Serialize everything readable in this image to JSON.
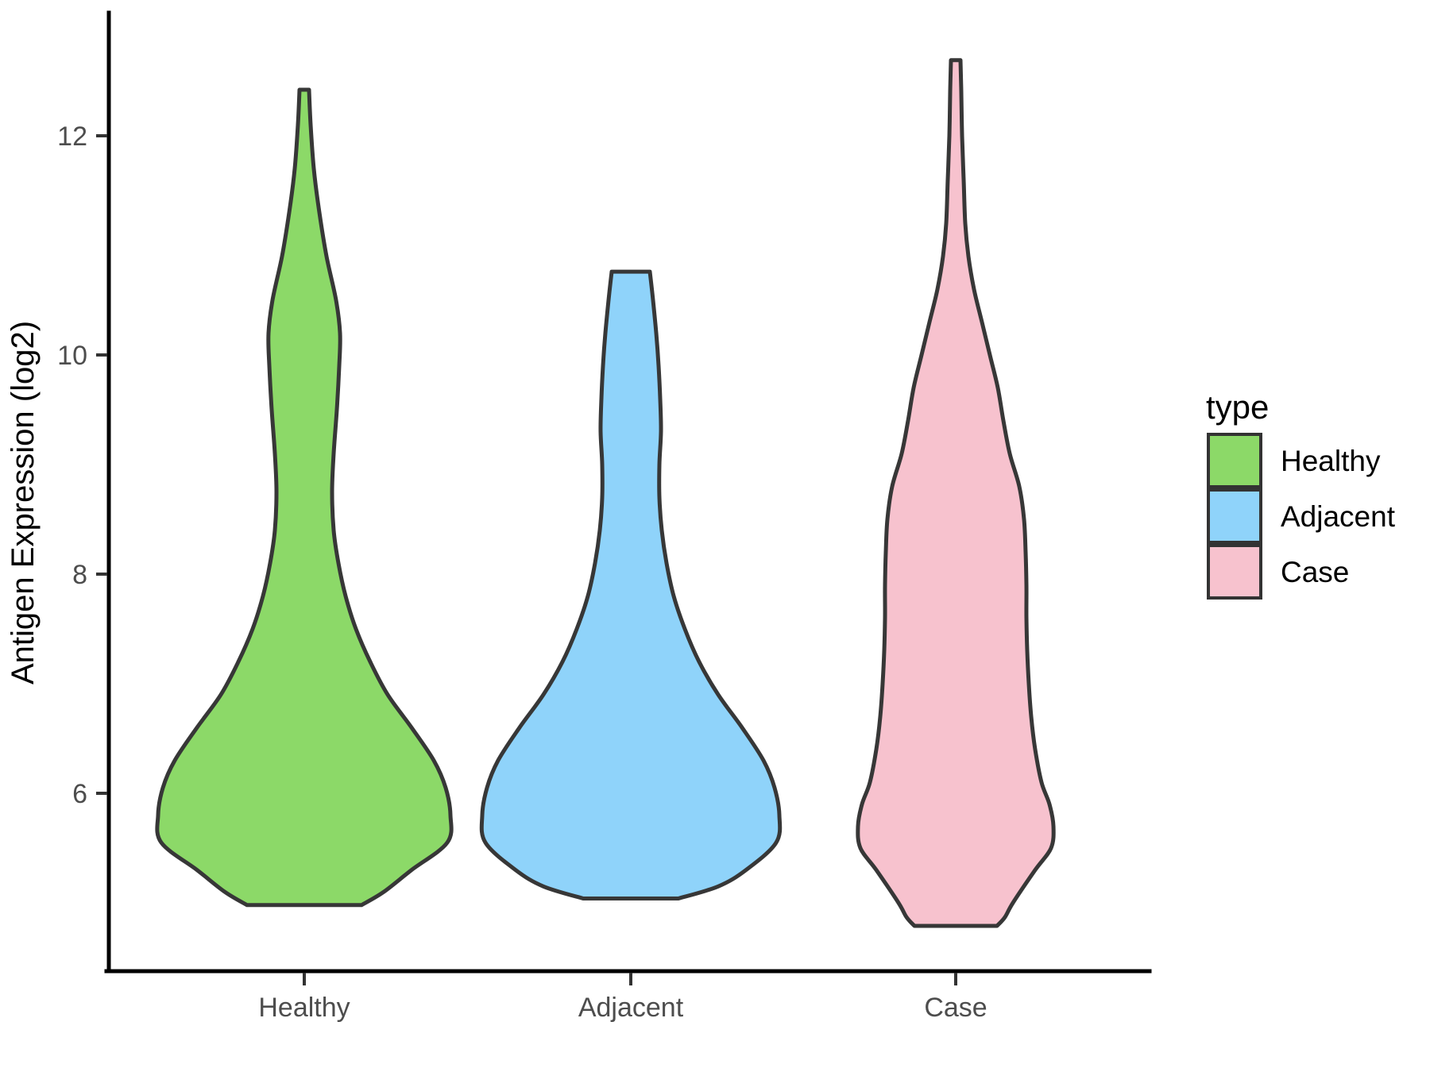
{
  "axes": {
    "y": {
      "title": "Antigen Expression (log2)",
      "ticks": [
        {
          "value": 12,
          "label": "12"
        },
        {
          "value": 10,
          "label": "10"
        },
        {
          "value": 8,
          "label": "8"
        },
        {
          "value": 6,
          "label": "6"
        }
      ]
    },
    "x": {
      "categories": [
        "Healthy",
        "Adjacent",
        "Case"
      ]
    }
  },
  "legend": {
    "title": "type",
    "items": [
      {
        "label": "Healthy",
        "color": "#8CD968"
      },
      {
        "label": "Adjacent",
        "color": "#8FD3FA"
      },
      {
        "label": "Case",
        "color": "#F7C2CE"
      }
    ]
  },
  "chart_data": {
    "type": "violin",
    "title": "",
    "xlabel": "",
    "ylabel": "Antigen Expression (log2)",
    "categories": [
      "Healthy",
      "Adjacent",
      "Case"
    ],
    "y_ticks": [
      6,
      8,
      10,
      12
    ],
    "ylim": [
      4.4,
      13.1
    ],
    "grid": "off",
    "legend_position": "right",
    "outline_color": "#373737",
    "background": "#FFFFFF",
    "violins": [
      {
        "group": "Healthy",
        "color": "#8CD968",
        "min": 5.0,
        "max": 12.4,
        "widest_at": 5.85,
        "profile": [
          [
            12.42,
            6
          ],
          [
            12.1,
            8
          ],
          [
            11.7,
            12
          ],
          [
            11.3,
            19
          ],
          [
            10.9,
            28
          ],
          [
            10.5,
            40
          ],
          [
            10.2,
            45
          ],
          [
            9.9,
            44
          ],
          [
            9.5,
            41
          ],
          [
            9.1,
            37
          ],
          [
            8.75,
            35
          ],
          [
            8.4,
            37
          ],
          [
            8.1,
            43
          ],
          [
            7.8,
            52
          ],
          [
            7.5,
            65
          ],
          [
            7.2,
            83
          ],
          [
            6.9,
            105
          ],
          [
            6.6,
            135
          ],
          [
            6.3,
            163
          ],
          [
            6.05,
            178
          ],
          [
            5.8,
            184
          ],
          [
            5.55,
            180
          ],
          [
            5.3,
            135
          ],
          [
            5.1,
            100
          ],
          [
            4.98,
            72
          ]
        ]
      },
      {
        "group": "Adjacent",
        "color": "#8FD3FA",
        "min": 5.05,
        "max": 10.75,
        "widest_at": 5.8,
        "profile": [
          [
            10.76,
            24
          ],
          [
            10.5,
            28
          ],
          [
            10.2,
            32
          ],
          [
            9.9,
            35
          ],
          [
            9.6,
            37
          ],
          [
            9.3,
            38
          ],
          [
            9.0,
            36
          ],
          [
            8.7,
            36
          ],
          [
            8.4,
            39
          ],
          [
            8.1,
            45
          ],
          [
            7.8,
            54
          ],
          [
            7.5,
            68
          ],
          [
            7.2,
            86
          ],
          [
            6.9,
            110
          ],
          [
            6.6,
            140
          ],
          [
            6.3,
            167
          ],
          [
            6.05,
            181
          ],
          [
            5.8,
            187
          ],
          [
            5.55,
            183
          ],
          [
            5.3,
            145
          ],
          [
            5.15,
            110
          ],
          [
            5.04,
            60
          ]
        ]
      },
      {
        "group": "Case",
        "color": "#F7C2CE",
        "min": 4.8,
        "max": 12.7,
        "widest_at": 5.7,
        "profile": [
          [
            12.69,
            6
          ],
          [
            12.4,
            7
          ],
          [
            12.0,
            8
          ],
          [
            11.6,
            10
          ],
          [
            11.2,
            12
          ],
          [
            10.9,
            16
          ],
          [
            10.6,
            23
          ],
          [
            10.3,
            33
          ],
          [
            10.0,
            43
          ],
          [
            9.7,
            53
          ],
          [
            9.4,
            60
          ],
          [
            9.1,
            68
          ],
          [
            8.8,
            80
          ],
          [
            8.5,
            86
          ],
          [
            8.2,
            88
          ],
          [
            7.9,
            89
          ],
          [
            7.6,
            89
          ],
          [
            7.3,
            90
          ],
          [
            7.0,
            92
          ],
          [
            6.7,
            95
          ],
          [
            6.4,
            100
          ],
          [
            6.1,
            108
          ],
          [
            5.9,
            118
          ],
          [
            5.7,
            123
          ],
          [
            5.5,
            120
          ],
          [
            5.3,
            100
          ],
          [
            5.0,
            72
          ],
          [
            4.87,
            62
          ],
          [
            4.79,
            52
          ]
        ]
      }
    ]
  }
}
